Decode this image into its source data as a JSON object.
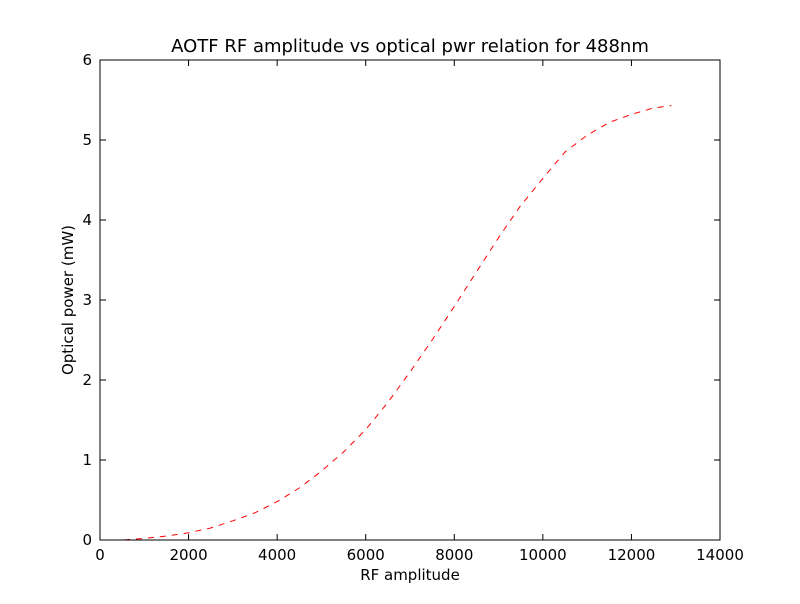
{
  "chart_data": {
    "type": "line",
    "title": "AOTF RF amplitude vs optical pwr relation for 488nm",
    "xlabel": "RF amplitude",
    "ylabel": "Optical power (mW)",
    "xlim": [
      0,
      14000
    ],
    "ylim": [
      0,
      6
    ],
    "xticks": [
      0,
      2000,
      4000,
      6000,
      8000,
      10000,
      12000,
      14000
    ],
    "yticks": [
      0,
      1,
      2,
      3,
      4,
      5,
      6
    ],
    "xtick_labels": [
      "0",
      "2000",
      "4000",
      "6000",
      "8000",
      "10000",
      "12000",
      "14000"
    ],
    "ytick_labels": [
      "0",
      "1",
      "2",
      "3",
      "4",
      "5",
      "6"
    ],
    "grid": false,
    "legend": null,
    "series": [
      {
        "color": "#ff0000",
        "line_style": "dashed",
        "x": [
          0,
          500,
          1000,
          1500,
          2000,
          2500,
          3000,
          3500,
          4000,
          4500,
          5000,
          5500,
          6000,
          6500,
          7000,
          7500,
          8000,
          8500,
          9000,
          9500,
          10000,
          10500,
          11000,
          11500,
          12000,
          12500,
          12900
        ],
        "y": [
          0.0,
          0.0,
          0.02,
          0.05,
          0.09,
          0.15,
          0.24,
          0.34,
          0.48,
          0.65,
          0.86,
          1.1,
          1.38,
          1.72,
          2.1,
          2.5,
          2.92,
          3.35,
          3.78,
          4.18,
          4.52,
          4.85,
          5.06,
          5.22,
          5.32,
          5.4,
          5.43
        ]
      }
    ]
  }
}
